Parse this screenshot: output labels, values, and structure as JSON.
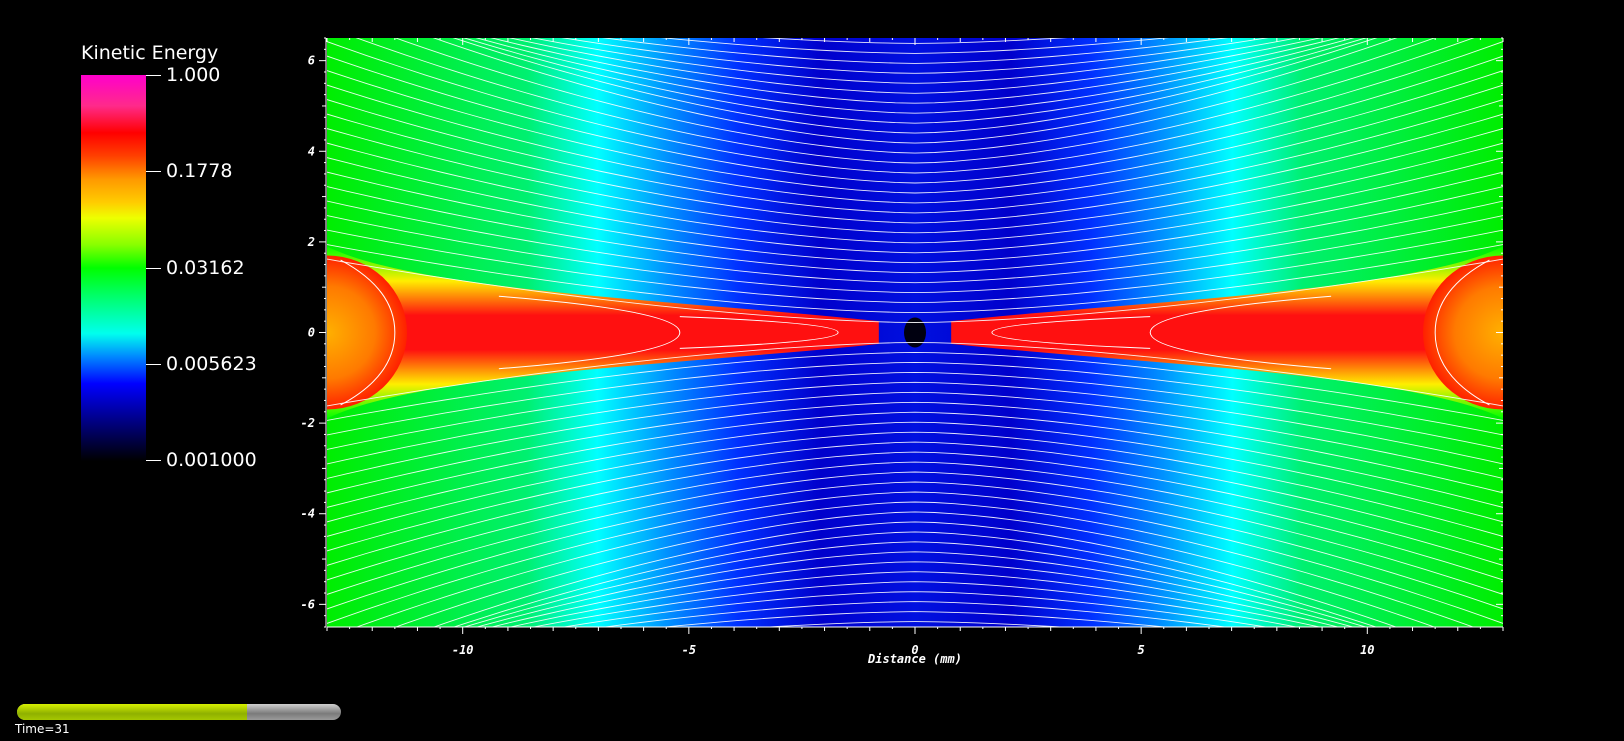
{
  "chart_data": {
    "type": "heatmap",
    "title": "",
    "colorbar": {
      "title": "Kinetic Energy",
      "scale": "log",
      "ticks": [
        "1.000",
        "0.1778",
        "0.03162",
        "0.005623",
        "0.001000"
      ]
    },
    "xlabel": "Distance (mm)",
    "ylabel": "",
    "xlim": [
      -13,
      13
    ],
    "ylim": [
      -6.5,
      6.5
    ],
    "x_ticks": [
      -10,
      -5,
      0,
      5,
      10
    ],
    "y_ticks": [
      -6,
      -4,
      -2,
      0,
      2,
      4,
      6
    ],
    "streamlines": "white",
    "colors": {
      "background": "#000000",
      "streamline": "#ffffff",
      "progress_fill": "#a6c800"
    }
  },
  "animation": {
    "time_label": "Time=31",
    "progress_fraction": 0.71
  }
}
